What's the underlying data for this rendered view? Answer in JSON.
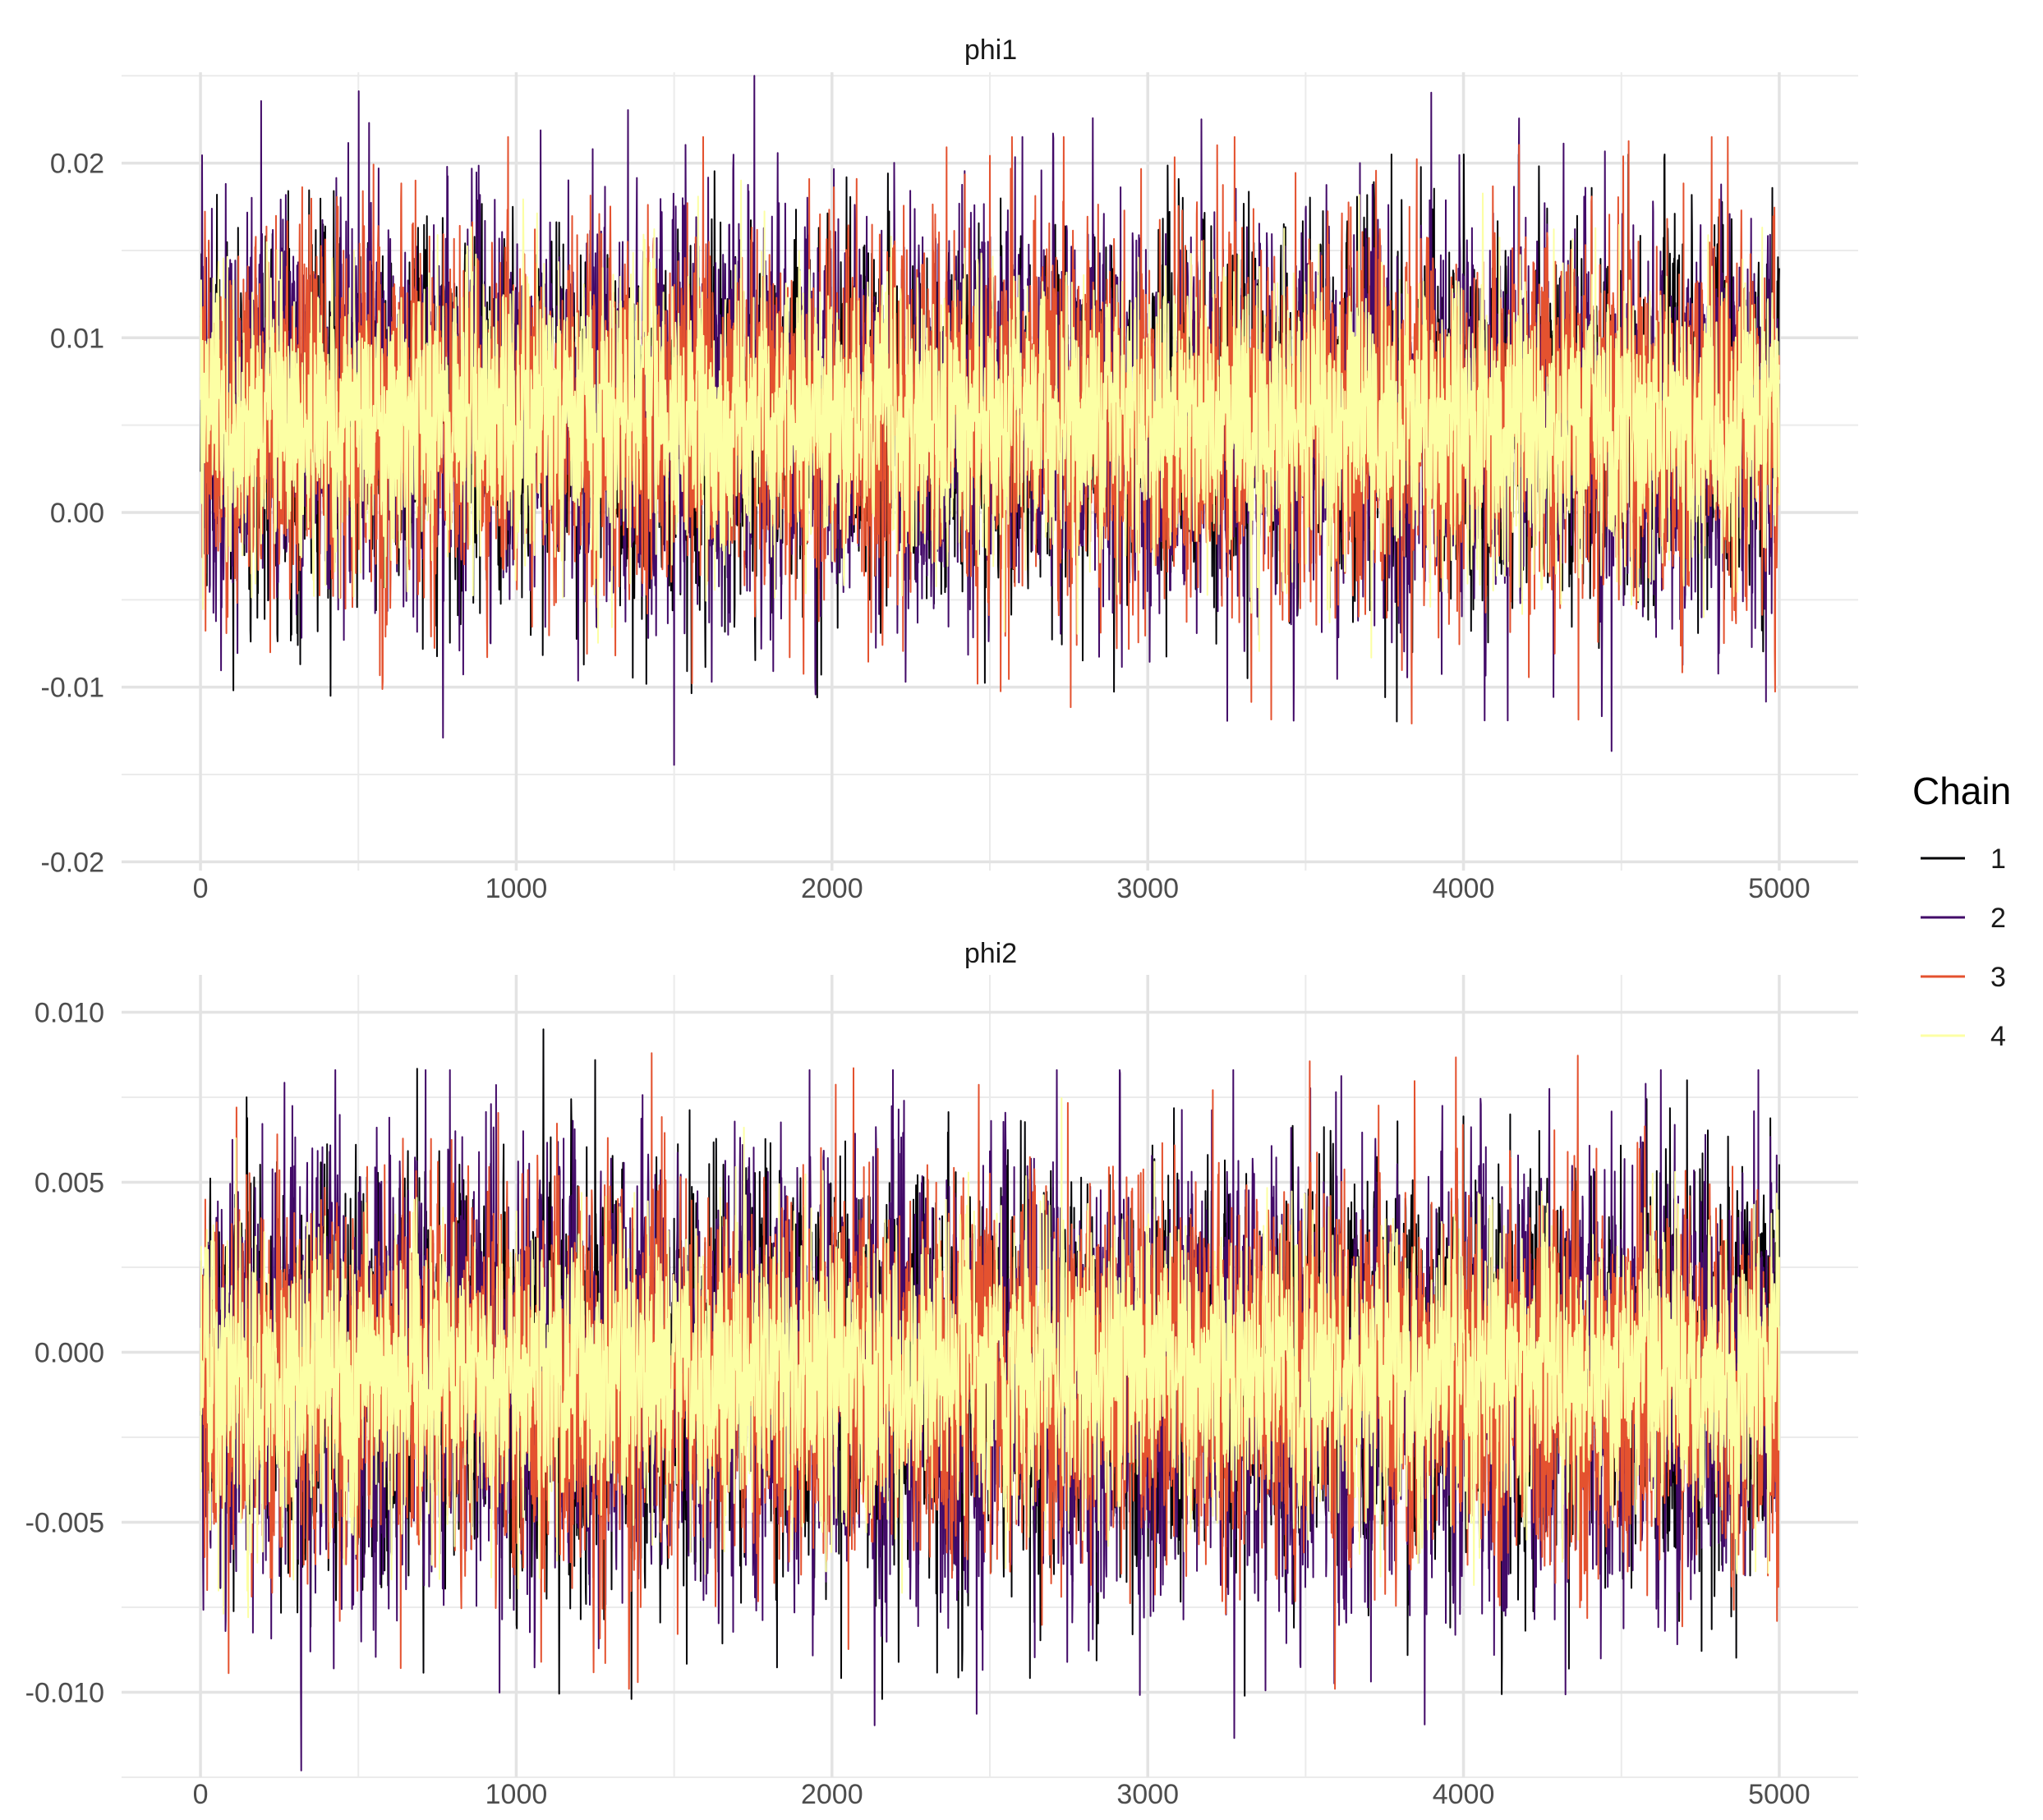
{
  "chart_data": {
    "type": "line",
    "legend": {
      "title": "Chain",
      "placement": "right",
      "entries": [
        {
          "label": "1",
          "color": "#000004"
        },
        {
          "label": "2",
          "color": "#420A68"
        },
        {
          "label": "3",
          "color": "#E4522F"
        },
        {
          "label": "4",
          "color": "#FCFFA4"
        }
      ]
    },
    "grid": true,
    "panels": [
      {
        "title": "phi1",
        "x_ticks": [
          0,
          1000,
          2000,
          3000,
          4000,
          5000
        ],
        "x_tick_labels": [
          "0",
          "1000",
          "2000",
          "3000",
          "4000",
          "5000"
        ],
        "xlim": [
          -250,
          5250
        ],
        "y_ticks": [
          -0.02,
          -0.01,
          0.0,
          0.01,
          0.02
        ],
        "y_tick_labels": [
          "-0.02",
          "-0.01",
          "0.00",
          "0.01",
          "0.02"
        ],
        "ylim": [
          -0.0205,
          0.0252
        ],
        "series": [
          {
            "chain": "1",
            "n": 5000,
            "mean": 0.0055,
            "sd": 0.0048,
            "min": -0.0175,
            "max": 0.0205
          },
          {
            "chain": "2",
            "n": 5000,
            "mean": 0.0055,
            "sd": 0.0052,
            "min": -0.0145,
            "max": 0.025
          },
          {
            "chain": "3",
            "n": 5000,
            "mean": 0.0055,
            "sd": 0.005,
            "min": -0.0187,
            "max": 0.0215
          },
          {
            "chain": "4",
            "n": 5000,
            "mean": 0.0055,
            "sd": 0.0038,
            "min": -0.0145,
            "max": 0.0218
          }
        ]
      },
      {
        "title": "phi2",
        "x_ticks": [
          0,
          1000,
          2000,
          3000,
          4000,
          5000
        ],
        "x_tick_labels": [
          "0",
          "1000",
          "2000",
          "3000",
          "4000",
          "5000"
        ],
        "xlim": [
          -250,
          5250
        ],
        "y_ticks": [
          -0.01,
          -0.005,
          0.0,
          0.005,
          0.01
        ],
        "y_tick_labels": [
          "-0.010",
          "-0.005",
          "0.000",
          "0.005",
          "0.010"
        ],
        "ylim": [
          -0.0125,
          0.0111
        ],
        "series": [
          {
            "chain": "1",
            "n": 5000,
            "mean": -0.0007,
            "sd": 0.0028,
            "min": -0.0102,
            "max": 0.0095
          },
          {
            "chain": "2",
            "n": 5000,
            "mean": -0.0007,
            "sd": 0.003,
            "min": -0.0123,
            "max": 0.0083
          },
          {
            "chain": "3",
            "n": 5000,
            "mean": -0.0007,
            "sd": 0.0026,
            "min": -0.0099,
            "max": 0.0088
          },
          {
            "chain": "4",
            "n": 5000,
            "mean": -0.0007,
            "sd": 0.002,
            "min": -0.0104,
            "max": 0.0098
          }
        ]
      }
    ]
  }
}
